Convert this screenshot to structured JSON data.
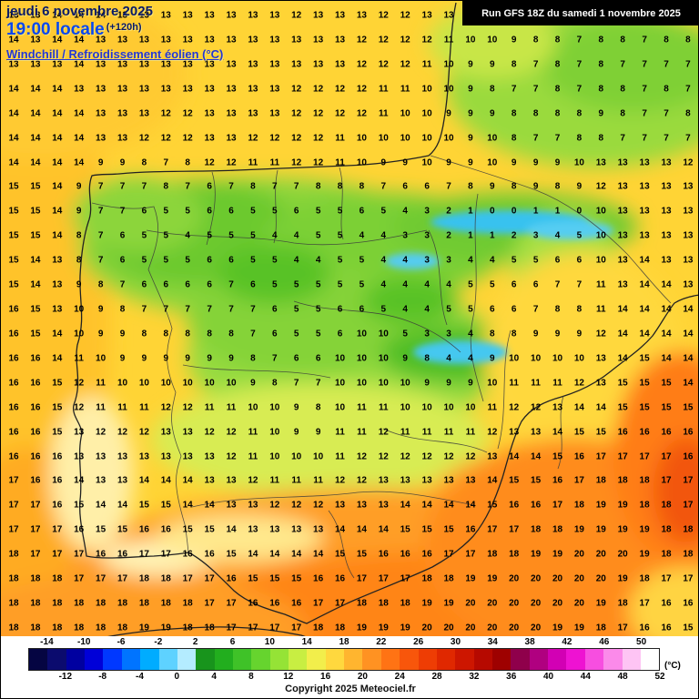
{
  "header": {
    "date_line": "jeudi 6 novembre 2025",
    "time_line": "19:00 locale",
    "offset": "(+120h)",
    "param_line": "Windchill / Refroidissement éolien (°C)",
    "run_info": "Run GFS 18Z du samedi 1 novembre 2025"
  },
  "footer": {
    "copyright": "Copyright 2025 Meteociel.fr",
    "unit_label": "(°C)"
  },
  "scale": {
    "min": -16,
    "max": 52,
    "step": 2,
    "top_labels": [
      "-14",
      "-10",
      "-6",
      "-2",
      "2",
      "6",
      "10",
      "14",
      "18",
      "22",
      "26",
      "30",
      "34",
      "38",
      "42",
      "46",
      "50"
    ],
    "bottom_labels": [
      "-12",
      "-8",
      "-4",
      "0",
      "4",
      "8",
      "12",
      "16",
      "20",
      "24",
      "28",
      "32",
      "36",
      "40",
      "44",
      "48",
      "52"
    ],
    "colors": [
      "#050542",
      "#0b0b6e",
      "#0000a0",
      "#0000d8",
      "#0038ff",
      "#0074ff",
      "#00acff",
      "#5ed2ff",
      "#b4ecff",
      "#18941c",
      "#22ae1e",
      "#3fc228",
      "#66d42e",
      "#95e336",
      "#c8ee42",
      "#f2ee4b",
      "#ffd83e",
      "#ffb52f",
      "#ff9222",
      "#ff7314",
      "#f8560b",
      "#ee3d04",
      "#e02800",
      "#cd1600",
      "#b60900",
      "#9e0100",
      "#8f004b",
      "#b00080",
      "#d200b4",
      "#ee12d2",
      "#f74ee0",
      "#fb8aea",
      "#fec4f4",
      "#ffffff"
    ]
  },
  "map_palette": {
    "base_yellow": "#ffd435",
    "green": "#7cd034",
    "dark_green": "#58c228",
    "cyan": "#44c8f0",
    "orange": "#ff9e26",
    "deep_orange": "#ff8516",
    "red_orange": "#f25708",
    "pale_cream": "#ffefa8"
  },
  "grid": {
    "rows": [
      "13 13 14 14 14 13 13 13 13 13 13 13 13 12 13 13 13 12 12 13 13 12 11 10 10 9 9 8 8 9 9 9",
      "14 13 14 14 13 13 13 13 13 13 13 13 13 13 13 13 12 12 12 12 11 10 10 9 8 8 7 8 8 7 8 8",
      "13 13 13 14 13 13 13 13 13 13 13 13 13 13 13 13 12 12 12 11 10 9 9 8 7 8 7 8 7 7 7 7",
      "14 14 14 13 13 13 13 13 13 13 13 13 13 12 12 12 12 11 11 10 10 9 8 7 7 8 7 8 8 7 8 7",
      "14 14 14 14 13 13 13 12 12 13 13 13 13 12 12 12 12 11 10 10 9 9 9 8 8 8 8 9 8 7 7 8",
      "14 14 14 14 13 13 12 12 12 13 13 12 12 12 12 11 10 10 10 10 10 9 10 8 7 7 8 8 7 7 7 7",
      "14 14 14 14 9 9 8 7 8 12 12 11 11 12 12 11 10 9 9 10 9 9 10 9 9 9 10 13 13 13 13 12",
      "15 15 14 9 7 7 7 8 7 6 7 8 7 7 8 8 8 7 6 6 7 8 9 8 9 8 9 12 13 13 13 13",
      "15 15 14 9 7 7 6 5 5 6 6 5 5 6 5 5 6 5 4 3 2 1 0 0 1 1 0 10 13 13 13 13",
      "15 15 14 8 7 6 5 5 4 5 5 5 4 4 5 5 4 4 3 3 2 1 1 2 3 4 5 10 13 13 13 13",
      "15 14 13 8 7 6 5 5 5 6 6 5 5 4 4 5 5 4 4 3 3 4 4 5 5 6 6 10 13 14 13 13",
      "15 14 13 9 8 7 6 6 6 6 7 6 5 5 5 5 5 4 4 4 4 5 5 6 6 7 7 11 13 14 14 13",
      "16 15 13 10 9 8 7 7 7 7 7 7 6 5 5 6 6 5 4 4 5 5 6 6 7 8 8 11 14 14 14 14",
      "16 15 14 10 9 9 8 8 8 8 8 7 6 5 5 6 10 10 5 3 3 4 8 8 9 9 9 12 14 14 14 14",
      "16 16 14 11 10 9 9 9 9 9 9 8 7 6 6 10 10 10 9 8 4 4 9 10 10 10 10 13 14 15 14 14",
      "16 16 15 12 11 10 10 10 10 10 10 9 8 7 7 10 10 10 10 9 9 9 10 11 11 11 12 13 15 15 15 14",
      "16 16 15 12 11 11 11 12 12 11 11 10 10 9 8 10 11 11 10 10 10 10 11 12 12 13 14 14 15 15 15 15",
      "16 16 15 13 12 12 12 13 13 12 12 11 10 9 9 11 11 12 11 11 11 11 12 13 13 14 15 15 16 16 16 16",
      "16 16 16 13 13 13 13 13 13 13 12 11 10 10 10 11 12 12 12 12 12 12 13 14 14 15 16 17 17 17 17 16",
      "17 16 16 14 13 13 14 14 14 13 13 12 11 11 11 12 12 13 13 13 13 13 14 15 15 16 17 18 18 18 17 17",
      "17 17 16 15 14 14 15 15 14 14 13 13 12 12 12 13 13 13 14 14 14 14 15 16 16 17 18 19 19 18 18 17",
      "17 17 17 16 15 15 16 16 15 15 14 13 13 13 13 14 14 14 15 15 15 16 17 17 18 18 19 19 19 19 18 18",
      "18 17 17 17 16 16 17 17 16 16 15 14 14 14 14 15 15 16 16 16 17 17 18 18 19 19 20 20 20 19 18 18",
      "18 18 18 17 17 17 18 18 17 17 16 15 15 15 16 16 17 17 17 18 18 19 19 20 20 20 20 20 19 18 17 17",
      "18 18 18 18 18 18 18 18 18 17 17 16 16 16 17 17 18 18 18 19 19 20 20 20 20 20 20 19 18 17 16 16",
      "18 18 18 18 18 18 19 19 18 18 17 17 17 17 18 18 19 19 19 20 20 20 20 20 20 19 19 18 17 16 16 15"
    ]
  }
}
